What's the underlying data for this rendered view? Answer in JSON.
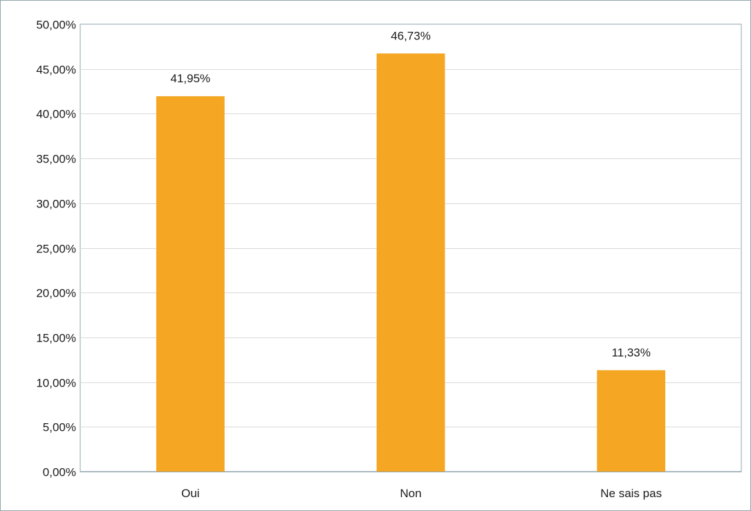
{
  "chart_data": {
    "type": "bar",
    "title": "",
    "xlabel": "",
    "ylabel": "",
    "categories": [
      "Oui",
      "Non",
      "Ne sais pas"
    ],
    "values": [
      41.95,
      46.73,
      11.33
    ],
    "data_labels": [
      "41,95%",
      "46,73%",
      "11,33%"
    ],
    "ylim": [
      0,
      50
    ],
    "y_ticks": [
      0,
      5,
      10,
      15,
      20,
      25,
      30,
      35,
      40,
      45,
      50
    ],
    "y_tick_labels": [
      "0,00%",
      "5,00%",
      "10,00%",
      "15,00%",
      "20,00%",
      "25,00%",
      "30,00%",
      "35,00%",
      "40,00%",
      "45,00%",
      "50,00%"
    ],
    "grid": true,
    "legend": "none",
    "colors": {
      "bar": "#f5a623",
      "grid": "#d9d9d9",
      "axis": "#8fa3ad",
      "frame": "#8fa3ad"
    }
  }
}
